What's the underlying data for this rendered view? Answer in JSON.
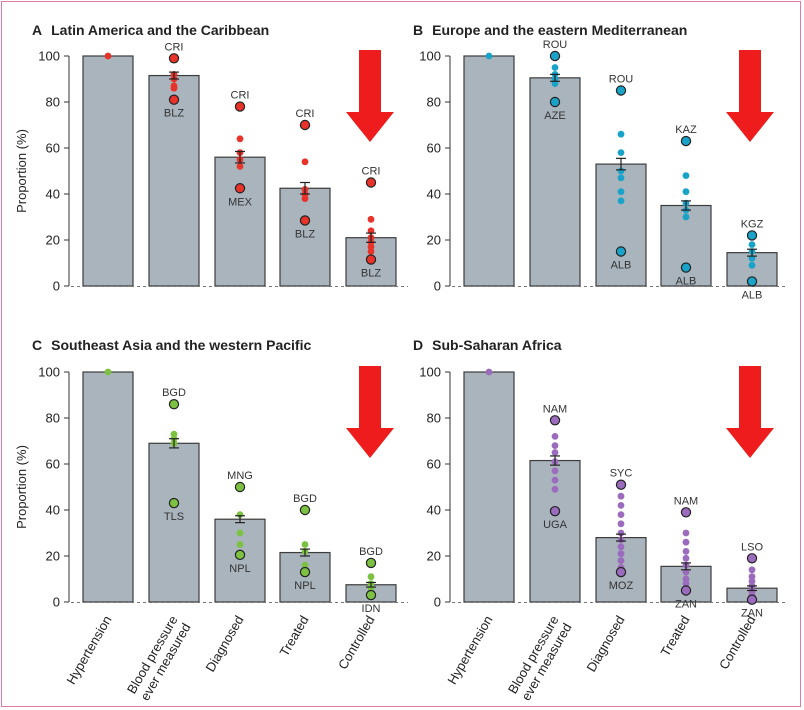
{
  "chart_data": {
    "type": "bar",
    "ylabel": "Proportion (%)",
    "ylim": [
      0,
      100
    ],
    "yticks": [
      "0",
      "20",
      "40",
      "60",
      "80",
      "100"
    ],
    "categories": [
      "Hypertension",
      "Blood pressure|ever measured",
      "Diagnosed",
      "Treated",
      "Controlled"
    ],
    "panels": [
      {
        "letter": "A",
        "title": "Latin America and the Caribbean",
        "color": "#e8332a",
        "values": [
          100,
          91.5,
          56,
          42.5,
          21
        ],
        "errors": [
          0,
          1.5,
          2.5,
          2.5,
          2
        ],
        "points": [
          [
            100
          ],
          [
            99,
            92,
            90,
            87,
            86,
            81
          ],
          [
            78,
            64,
            58,
            55,
            52,
            42.5
          ],
          [
            70,
            54,
            42,
            40,
            38,
            28.5
          ],
          [
            45,
            29,
            24,
            21,
            19,
            17,
            15,
            11.5
          ]
        ],
        "highlights": [
          [],
          [
            {
              "y": 99,
              "label": "CRI",
              "pos": "above"
            },
            {
              "y": 81,
              "label": "BLZ",
              "pos": "below"
            }
          ],
          [
            {
              "y": 78,
              "label": "CRI",
              "pos": "above"
            },
            {
              "y": 42.5,
              "label": "MEX",
              "pos": "below"
            }
          ],
          [
            {
              "y": 70,
              "label": "CRI",
              "pos": "above"
            },
            {
              "y": 28.5,
              "label": "BLZ",
              "pos": "below"
            }
          ],
          [
            {
              "y": 45,
              "label": "CRI",
              "pos": "above"
            },
            {
              "y": 11.5,
              "label": "BLZ",
              "pos": "below"
            }
          ]
        ]
      },
      {
        "letter": "B",
        "title": "Europe and the eastern Mediterranean",
        "color": "#1aa3c8",
        "values": [
          100,
          90.5,
          53,
          35,
          14.5
        ],
        "errors": [
          0,
          1.5,
          2.5,
          2,
          1.5
        ],
        "points": [
          [
            100
          ],
          [
            100,
            95,
            92,
            90,
            88,
            80
          ],
          [
            85,
            66,
            58,
            50,
            47,
            41,
            37,
            15
          ],
          [
            63,
            48,
            41,
            36,
            33,
            30,
            8
          ],
          [
            22,
            18,
            15,
            12,
            9,
            2
          ]
        ],
        "highlights": [
          [],
          [
            {
              "y": 100,
              "label": "ROU",
              "pos": "above"
            },
            {
              "y": 80,
              "label": "AZE",
              "pos": "below"
            }
          ],
          [
            {
              "y": 85,
              "label": "ROU",
              "pos": "above"
            },
            {
              "y": 15,
              "label": "ALB",
              "pos": "below"
            }
          ],
          [
            {
              "y": 63,
              "label": "KAZ",
              "pos": "above"
            },
            {
              "y": 8,
              "label": "ALB",
              "pos": "below"
            }
          ],
          [
            {
              "y": 22,
              "label": "KGZ",
              "pos": "above"
            },
            {
              "y": 2,
              "label": "ALB",
              "pos": "below"
            }
          ]
        ]
      },
      {
        "letter": "C",
        "title": "Southeast Asia and the western Pacific",
        "color": "#7dc142",
        "values": [
          100,
          69,
          36,
          21.5,
          7.5
        ],
        "errors": [
          0,
          2,
          1.5,
          1.5,
          1
        ],
        "points": [
          [
            100
          ],
          [
            86,
            73,
            71,
            69,
            43
          ],
          [
            50,
            38,
            30,
            25,
            20.5
          ],
          [
            40,
            25,
            22,
            16,
            14,
            13
          ],
          [
            17,
            11,
            8,
            6,
            3
          ]
        ],
        "highlights": [
          [],
          [
            {
              "y": 86,
              "label": "BGD",
              "pos": "above"
            },
            {
              "y": 43,
              "label": "TLS",
              "pos": "below"
            }
          ],
          [
            {
              "y": 50,
              "label": "MNG",
              "pos": "above"
            },
            {
              "y": 20.5,
              "label": "NPL",
              "pos": "below"
            }
          ],
          [
            {
              "y": 40,
              "label": "BGD",
              "pos": "above"
            },
            {
              "y": 13,
              "label": "NPL",
              "pos": "below"
            }
          ],
          [
            {
              "y": 17,
              "label": "BGD",
              "pos": "above"
            },
            {
              "y": 3,
              "label": "IDN",
              "pos": "below"
            }
          ]
        ]
      },
      {
        "letter": "D",
        "title": "Sub-Saharan Africa",
        "color": "#9b6bbd",
        "values": [
          100,
          61.5,
          28,
          15.5,
          6
        ],
        "errors": [
          0,
          2,
          1.5,
          1.5,
          1
        ],
        "points": [
          [
            100
          ],
          [
            79,
            72,
            68,
            65,
            61,
            57,
            53,
            49,
            39.5
          ],
          [
            51,
            46,
            42,
            38,
            34,
            30,
            27,
            24,
            21,
            18,
            15,
            13
          ],
          [
            39,
            30,
            26,
            22,
            19,
            16,
            13,
            10,
            8,
            5
          ],
          [
            19,
            14,
            11,
            9,
            7,
            5,
            4,
            3,
            2,
            1
          ]
        ],
        "highlights": [
          [],
          [
            {
              "y": 79,
              "label": "NAM",
              "pos": "above"
            },
            {
              "y": 39.5,
              "label": "UGA",
              "pos": "below"
            }
          ],
          [
            {
              "y": 51,
              "label": "SYC",
              "pos": "above"
            },
            {
              "y": 13,
              "label": "MOZ",
              "pos": "below"
            }
          ],
          [
            {
              "y": 39,
              "label": "NAM",
              "pos": "above"
            },
            {
              "y": 5,
              "label": "ZAN",
              "pos": "below"
            }
          ],
          [
            {
              "y": 19,
              "label": "LSO",
              "pos": "above"
            },
            {
              "y": 1,
              "label": "ZAN",
              "pos": "below"
            }
          ]
        ]
      }
    ]
  },
  "colors": {
    "bar_fill": "#a9b4bd",
    "bar_edge": "#3c3c3c",
    "arrow": "#ee1c1c",
    "frame": "#e07aa6"
  }
}
